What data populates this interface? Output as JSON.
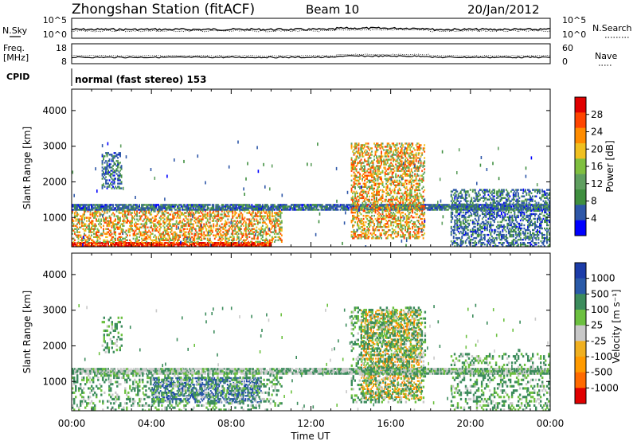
{
  "header": {
    "station": "Zhongshan Station (fitACF)",
    "beam": "Beam 10",
    "date": "20/Jan/2012"
  },
  "status_panels": {
    "nsky_label": "N.Sky",
    "nsky_ticks": [
      "10^5",
      "10^0"
    ],
    "nsearch_label": "N.Search",
    "nsearch_ticks": [
      "10^5",
      "10^0"
    ],
    "freq_label": "Freq.",
    "freq_unit": "[MHz]",
    "freq_ticks": [
      "18",
      "8"
    ],
    "nave_label": "Nave",
    "nave_ticks": [
      "60",
      "0"
    ],
    "cpid_label": "CPID",
    "cpid_value": "normal (fast stereo) 153"
  },
  "colors": {
    "power": [
      "#0000ff",
      "#2e57a8",
      "#3f8f3f",
      "#5f9f5f",
      "#7fbf3f",
      "#f0c020",
      "#ff8c00",
      "#ff4500",
      "#e00000"
    ],
    "velocity": [
      "#e00000",
      "#ff6a00",
      "#ff9a00",
      "#f0b020",
      "#c8c8c8",
      "#6cc040",
      "#3c8c5c",
      "#2a5aa8",
      "#1c3ca8"
    ]
  },
  "chart_data": [
    {
      "type": "heatmap",
      "name": "power",
      "title": "",
      "xlabel": "",
      "ylabel": "Slant Range [km]",
      "xlim": [
        "00:00",
        "00:00"
      ],
      "ylim": [
        180,
        4600
      ],
      "yticks": [
        "1000",
        "2000",
        "3000",
        "4000"
      ],
      "colorbar": {
        "label": "Power [dB]",
        "ticks": [
          "4",
          "8",
          "12",
          "16",
          "20",
          "24",
          "28"
        ],
        "range": [
          0,
          30
        ]
      },
      "echo_regions": [
        {
          "t_start": 0.0,
          "t_end": 10.0,
          "r_min": 180,
          "r_max": 300,
          "level": "high"
        },
        {
          "t_start": 0.0,
          "t_end": 10.5,
          "r_min": 300,
          "r_max": 1200,
          "level": "medium"
        },
        {
          "t_start": 0.0,
          "t_end": 24.0,
          "r_min": 1200,
          "r_max": 1350,
          "level": "low"
        },
        {
          "t_start": 1.5,
          "t_end": 2.5,
          "r_min": 1800,
          "r_max": 2800,
          "level": "low"
        },
        {
          "t_start": 14.0,
          "t_end": 17.7,
          "r_min": 400,
          "r_max": 3100,
          "level": "medium"
        },
        {
          "t_start": 19.0,
          "t_end": 24.0,
          "r_min": 180,
          "r_max": 1800,
          "level": "low"
        }
      ]
    },
    {
      "type": "heatmap",
      "name": "velocity",
      "title": "",
      "xlabel": "Time UT",
      "ylabel": "Slant Range [km]",
      "xlim": [
        "00:00",
        "00:00"
      ],
      "ylim": [
        180,
        4600
      ],
      "xticks": [
        "00:00",
        "04:00",
        "08:00",
        "12:00",
        "16:00",
        "20:00",
        "00:00"
      ],
      "yticks": [
        "1000",
        "2000",
        "3000",
        "4000"
      ],
      "colorbar": {
        "label": "Velocity [m s⁻¹]",
        "ticks": [
          "1000",
          "500",
          "100",
          "25",
          "-25",
          "-100",
          "-500",
          "-1000"
        ]
      },
      "echo_regions": [
        {
          "t_start": 4.0,
          "t_end": 9.5,
          "r_min": 400,
          "r_max": 1100,
          "sign": "positive-strong"
        },
        {
          "t_start": 14.5,
          "t_end": 17.5,
          "r_min": 500,
          "r_max": 3000,
          "sign": "negative"
        },
        {
          "t_start": 0.0,
          "t_end": 24.0,
          "r_min": 1200,
          "r_max": 1350,
          "sign": "near-zero"
        }
      ]
    }
  ]
}
